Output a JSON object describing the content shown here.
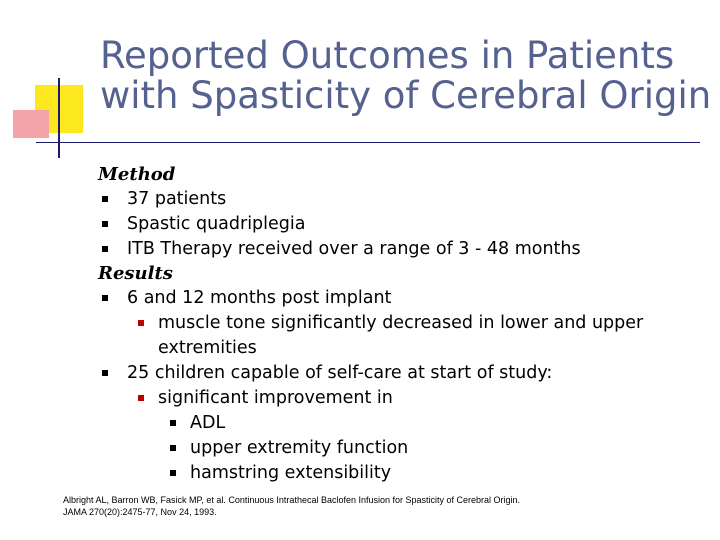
{
  "title": {
    "line1": "Reported Outcomes in Patients",
    "line2": "with Spasticity of Cerebral Origin"
  },
  "method": {
    "heading": "Method",
    "items": [
      "37 patients",
      "Spastic quadriplegia",
      "ITB Therapy received over a range of 3 - 48 months"
    ]
  },
  "results": {
    "heading": "Results",
    "item1": "6 and 12 months post implant",
    "item1_sub": "muscle tone significantly decreased in lower and upper extremities",
    "item2": "25 children capable of self-care at start of study:",
    "item2_sub": "significant improvement in",
    "item2_subsub": [
      "ADL",
      "upper extremity function",
      "hamstring extensibility"
    ]
  },
  "citation": {
    "line1": "Albright AL, Barron WB, Fasick MP, et al. Continuous Intrathecal Baclofen Infusion for Spasticity of Cerebral Origin.",
    "line2": "JAMA 270(20):2475-77, Nov 24, 1993."
  },
  "colors": {
    "title": "#55618e",
    "accent_yellow": "#fde820",
    "accent_pink": "#f3a4a8",
    "sub_bullet": "#c00000"
  }
}
